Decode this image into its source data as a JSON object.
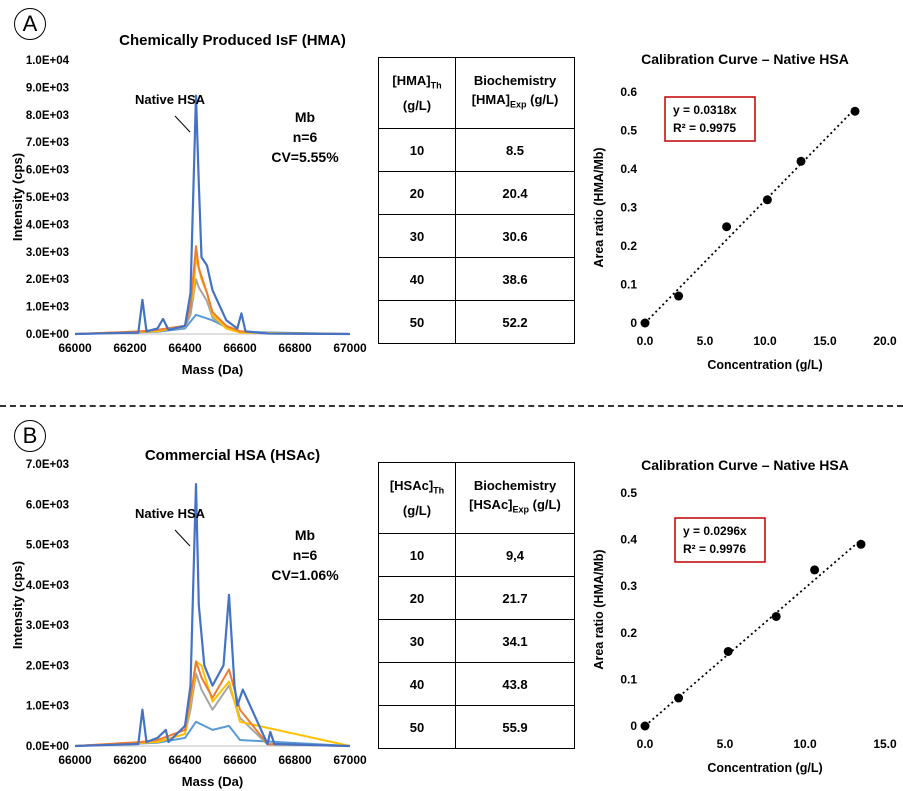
{
  "panels": [
    {
      "label": "A",
      "spectrum": {
        "title": "Chemically Produced IsF (HMA)",
        "xlabel": "Mass (Da)",
        "ylabel": "Intensity (cps)",
        "y_ticks": [
          "0.0E+00",
          "1.0E+03",
          "2.0E+03",
          "3.0E+03",
          "4.0E+03",
          "5.0E+03",
          "6.0E+03",
          "7.0E+03",
          "8.0E+03",
          "9.0E+03",
          "1.0E+04"
        ],
        "x_ticks": [
          "66000",
          "66200",
          "66400",
          "66600",
          "66800",
          "67000"
        ],
        "ylim": [
          0,
          10000
        ],
        "xlim": [
          66000,
          67000
        ],
        "annotation": "Native HSA",
        "stats": [
          "Mb",
          "n=6",
          "CV=5.55%"
        ],
        "series_colors": [
          "#4472c4",
          "#ed7d31",
          "#a5a5a5",
          "#ffc000",
          "#5b9bd5",
          "#4472c4"
        ]
      },
      "table": {
        "head_left_main": "[HMA]",
        "head_left_sub": "Th",
        "head_left_unit": "(g/L)",
        "head_right_l1": "Biochemistry",
        "head_right_main": "[HMA]",
        "head_right_sub": "Exp",
        "head_right_unit": "(g/L)",
        "rows": [
          [
            "10",
            "8.5"
          ],
          [
            "20",
            "20.4"
          ],
          [
            "30",
            "30.6"
          ],
          [
            "40",
            "38.6"
          ],
          [
            "50",
            "52.2"
          ]
        ]
      },
      "calibration": {
        "title": "Calibration Curve – Native HSA",
        "xlabel": "Concentration (g/L)",
        "ylabel": "Area ratio (HMA/Mb)",
        "equation": "y = 0.0318x",
        "r2": "R² = 0.9975",
        "x_ticks": [
          "0.0",
          "5.0",
          "10.0",
          "15.0",
          "20.0"
        ],
        "y_ticks": [
          "0",
          "0.1",
          "0.2",
          "0.3",
          "0.4",
          "0.5",
          "0.6"
        ],
        "xlim": [
          0,
          20
        ],
        "ylim": [
          0,
          0.6
        ],
        "slope": 0.0318,
        "points": [
          [
            0,
            0
          ],
          [
            2.8,
            0.07
          ],
          [
            6.8,
            0.25
          ],
          [
            10.2,
            0.32
          ],
          [
            13.0,
            0.42
          ],
          [
            17.5,
            0.55
          ]
        ]
      }
    },
    {
      "label": "B",
      "spectrum": {
        "title": "Commercial HSA (HSAc)",
        "xlabel": "Mass (Da)",
        "ylabel": "Intensity (cps)",
        "y_ticks": [
          "0.0E+00",
          "1.0E+03",
          "2.0E+03",
          "3.0E+03",
          "4.0E+03",
          "5.0E+03",
          "6.0E+03",
          "7.0E+03"
        ],
        "x_ticks": [
          "66000",
          "66200",
          "66400",
          "66600",
          "66800",
          "67000"
        ],
        "ylim": [
          0,
          7000
        ],
        "xlim": [
          66000,
          67000
        ],
        "annotation": "Native HSA",
        "stats": [
          "Mb",
          "n=6",
          "CV=1.06%"
        ],
        "series_colors": [
          "#4472c4",
          "#ed7d31",
          "#a5a5a5",
          "#ffc000",
          "#5b9bd5",
          "#4472c4"
        ]
      },
      "table": {
        "head_left_main": "[HSAc]",
        "head_left_sub": "Th",
        "head_left_unit": "(g/L)",
        "head_right_l1": "Biochemistry",
        "head_right_main": "[HSAc]",
        "head_right_sub": "Exp",
        "head_right_unit": "(g/L)",
        "rows": [
          [
            "10",
            "9,4"
          ],
          [
            "20",
            "21.7"
          ],
          [
            "30",
            "34.1"
          ],
          [
            "40",
            "43.8"
          ],
          [
            "50",
            "55.9"
          ]
        ]
      },
      "calibration": {
        "title": "Calibration Curve – Native HSA",
        "xlabel": "Concentration (g/L)",
        "ylabel": "Area ratio (HMA/Mb)",
        "equation": "y = 0.0296x",
        "r2": "R² = 0.9976",
        "x_ticks": [
          "0.0",
          "5.0",
          "10.0",
          "15.0"
        ],
        "y_ticks": [
          "0",
          "0.1",
          "0.2",
          "0.3",
          "0.4",
          "0.5"
        ],
        "xlim": [
          0,
          15
        ],
        "ylim": [
          0,
          0.5
        ],
        "slope": 0.0296,
        "points": [
          [
            0,
            0
          ],
          [
            2.1,
            0.06
          ],
          [
            5.2,
            0.16
          ],
          [
            8.2,
            0.235
          ],
          [
            10.6,
            0.335
          ],
          [
            13.5,
            0.39
          ]
        ]
      }
    }
  ],
  "chart_data": [
    {
      "type": "line",
      "title": "Chemically Produced IsF (HMA)",
      "xlabel": "Mass (Da)",
      "ylabel": "Intensity (cps)",
      "xlim": [
        66000,
        67000
      ],
      "ylim": [
        0,
        10000
      ],
      "series": [
        {
          "values_x": [
            66000,
            66230,
            66245,
            66260,
            66300,
            66320,
            66340,
            66400,
            66420,
            66440,
            66450,
            66460,
            66480,
            66500,
            66550,
            66590,
            66605,
            66620,
            66700,
            67000
          ],
          "values": [
            0,
            50,
            1250,
            100,
            200,
            550,
            150,
            300,
            1500,
            8700,
            5500,
            2800,
            2500,
            1600,
            500,
            200,
            750,
            100,
            20,
            0
          ]
        },
        {
          "values_x": [
            66000,
            66240,
            66300,
            66400,
            66420,
            66440,
            66450,
            66480,
            66500,
            66550,
            66600,
            66700,
            67000
          ],
          "values": [
            0,
            100,
            150,
            300,
            1000,
            3200,
            2400,
            1500,
            800,
            300,
            100,
            20,
            0
          ]
        },
        {
          "values_x": [
            66000,
            66240,
            66300,
            66400,
            66420,
            66440,
            66450,
            66480,
            66500,
            66550,
            66600,
            66700,
            67000
          ],
          "values": [
            0,
            80,
            120,
            250,
            700,
            2000,
            1700,
            1200,
            600,
            250,
            80,
            20,
            0
          ]
        },
        {
          "values_x": [
            66000,
            66300,
            66400,
            66430,
            66440,
            66460,
            66480,
            66500,
            66550,
            66600,
            67000
          ],
          "values": [
            0,
            100,
            300,
            1500,
            2800,
            2000,
            1500,
            700,
            200,
            50,
            0
          ]
        },
        {
          "values_x": [
            66000,
            66300,
            66400,
            66440,
            66500,
            66560,
            66600,
            67000
          ],
          "values": [
            0,
            80,
            200,
            700,
            500,
            200,
            80,
            0
          ]
        }
      ]
    },
    {
      "type": "scatter",
      "title": "Calibration Curve – Native HSA",
      "xlabel": "Concentration (g/L)",
      "ylabel": "Area ratio (HMA/Mb)",
      "xlim": [
        0,
        20
      ],
      "ylim": [
        0,
        0.6
      ],
      "x": [
        0,
        2.8,
        6.8,
        10.2,
        13.0,
        17.5
      ],
      "y": [
        0,
        0.07,
        0.25,
        0.32,
        0.42,
        0.55
      ],
      "trendline": "y = 0.0318x",
      "r2": "R² = 0.9975"
    },
    {
      "type": "line",
      "title": "Commercial HSA (HSAc)",
      "xlabel": "Mass (Da)",
      "ylabel": "Intensity (cps)",
      "xlim": [
        66000,
        67000
      ],
      "ylim": [
        0,
        7000
      ],
      "series": [
        {
          "values_x": [
            66000,
            66230,
            66245,
            66260,
            66300,
            66330,
            66340,
            66400,
            66420,
            66440,
            66450,
            66470,
            66500,
            66540,
            66560,
            66580,
            66590,
            66610,
            66700,
            66710,
            66725,
            67000
          ],
          "values": [
            0,
            50,
            900,
            100,
            200,
            400,
            100,
            500,
            1500,
            6500,
            3500,
            2000,
            1500,
            2000,
            3750,
            1500,
            1000,
            1400,
            50,
            350,
            50,
            0
          ]
        },
        {
          "values_x": [
            66000,
            66240,
            66300,
            66400,
            66420,
            66440,
            66460,
            66500,
            66560,
            66600,
            66700,
            67000
          ],
          "values": [
            0,
            100,
            150,
            400,
            1200,
            2100,
            1700,
            1200,
            1900,
            900,
            50,
            0
          ]
        },
        {
          "values_x": [
            66000,
            66240,
            66300,
            66400,
            66420,
            66440,
            66460,
            66500,
            66560,
            66600,
            66700,
            67000
          ],
          "values": [
            0,
            80,
            100,
            300,
            900,
            1800,
            1400,
            900,
            1500,
            700,
            40,
            0
          ]
        },
        {
          "values_x": [
            66000,
            66300,
            66400,
            66430,
            66440,
            66460,
            66500,
            66560,
            66600,
            67000
          ],
          "values": [
            0,
            100,
            300,
            1500,
            2100,
            2000,
            1100,
            1600,
            600,
            0
          ]
        },
        {
          "values_x": [
            66000,
            66300,
            66400,
            66440,
            66500,
            66560,
            66600,
            67000
          ],
          "values": [
            0,
            80,
            200,
            600,
            400,
            500,
            150,
            0
          ]
        }
      ]
    },
    {
      "type": "scatter",
      "title": "Calibration Curve – Native HSA",
      "xlabel": "Concentration (g/L)",
      "ylabel": "Area ratio (HMA/Mb)",
      "xlim": [
        0,
        15
      ],
      "ylim": [
        0,
        0.5
      ],
      "x": [
        0,
        2.1,
        5.2,
        8.2,
        10.6,
        13.5
      ],
      "y": [
        0,
        0.06,
        0.16,
        0.235,
        0.335,
        0.39
      ],
      "trendline": "y = 0.0296x",
      "r2": "R² = 0.9976"
    }
  ]
}
